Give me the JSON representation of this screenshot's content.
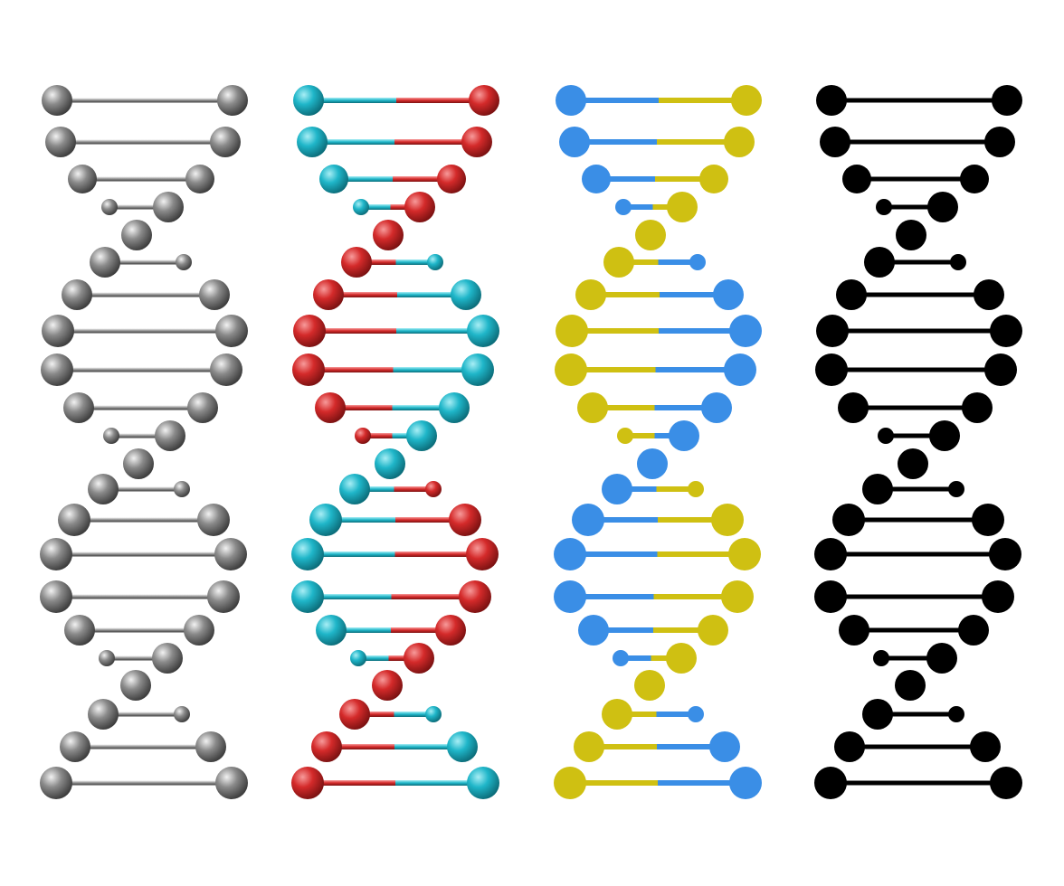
{
  "helices": [
    {
      "id": "gray",
      "style": "metallic-3d",
      "strand_a": {
        "name": "gray",
        "base": "#8a8a8a",
        "light": "#f2f2f2",
        "dark": "#3e3e3e"
      },
      "strand_b": {
        "name": "gray",
        "base": "#8a8a8a",
        "light": "#f2f2f2",
        "dark": "#3e3e3e"
      }
    },
    {
      "id": "cyan-red",
      "style": "glossy-3d",
      "strand_a": {
        "name": "cyan",
        "base": "#1fb6c9",
        "light": "#a8eef5",
        "dark": "#0c6e7b"
      },
      "strand_b": {
        "name": "red",
        "base": "#d42a2a",
        "light": "#f79a9a",
        "dark": "#7d1212"
      }
    },
    {
      "id": "blue-yellow",
      "style": "flat",
      "strand_a": {
        "name": "blue",
        "base": "#3a8ee6"
      },
      "strand_b": {
        "name": "yellow",
        "base": "#cfc012"
      }
    },
    {
      "id": "black",
      "style": "flat-silhouette",
      "strand_a": {
        "name": "black",
        "base": "#000000"
      },
      "strand_b": {
        "name": "black",
        "base": "#000000"
      }
    }
  ],
  "rungs_per_helix": 20
}
